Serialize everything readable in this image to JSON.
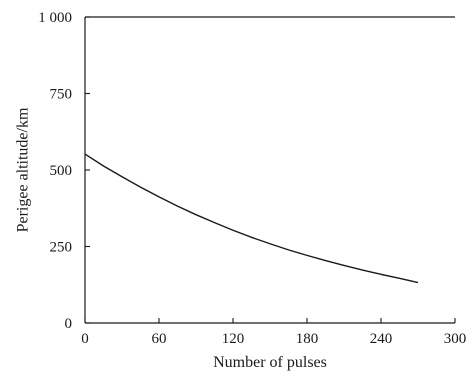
{
  "chart_data": {
    "type": "line",
    "title": "",
    "xlabel": "Number of pulses",
    "ylabel": "Perigee altitude/km",
    "xlim": [
      0,
      300
    ],
    "ylim": [
      0,
      1000
    ],
    "xticks": [
      {
        "value": 0,
        "label": "0"
      },
      {
        "value": 60,
        "label": "60"
      },
      {
        "value": 120,
        "label": "120"
      },
      {
        "value": 180,
        "label": "180"
      },
      {
        "value": 240,
        "label": "240"
      },
      {
        "value": 300,
        "label": "300"
      }
    ],
    "yticks": [
      {
        "value": 0,
        "label": "0"
      },
      {
        "value": 250,
        "label": "250"
      },
      {
        "value": 500,
        "label": "500"
      },
      {
        "value": 750,
        "label": "750"
      },
      {
        "value": 1000,
        "label": "1 000"
      }
    ],
    "grid": false,
    "legend": "none",
    "series": [
      {
        "color": "#1a1a1a",
        "x": [
          0,
          15,
          30,
          45,
          60,
          75,
          90,
          105,
          120,
          135,
          150,
          165,
          180,
          195,
          210,
          225,
          240,
          255,
          270
        ],
        "y": [
          552,
          513,
          478,
          444,
          412,
          382,
          354,
          328,
          303,
          280,
          259,
          239,
          221,
          204,
          188,
          173,
          159,
          146,
          132
        ]
      }
    ]
  }
}
